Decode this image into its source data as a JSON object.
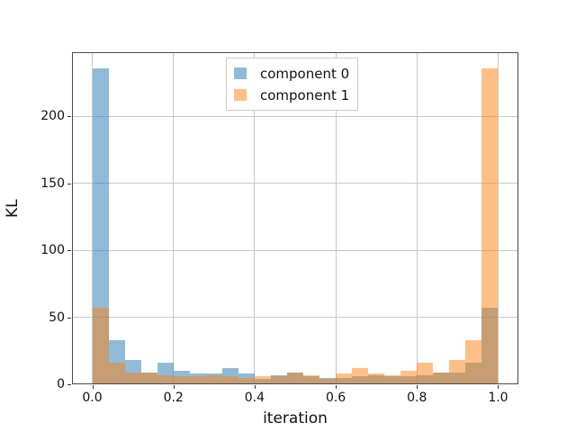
{
  "chart_data": {
    "type": "bar",
    "subtype": "overlaid-histogram",
    "title": "",
    "xlabel": "iteration",
    "ylabel": "KL",
    "xlim": [
      -0.05,
      1.05
    ],
    "ylim": [
      0,
      247.8
    ],
    "grid": true,
    "grid_color": "#c8c8c8",
    "spine_color": "#4a4a4a",
    "background_color": "#ffffff",
    "bin_start": 0.0,
    "bin_width": 0.04,
    "bin_count": 25,
    "xticks": [
      0.0,
      0.2,
      0.4,
      0.6,
      0.8,
      1.0
    ],
    "xtick_labels": [
      "0.0",
      "0.2",
      "0.4",
      "0.6",
      "0.8",
      "1.0"
    ],
    "yticks": [
      0,
      50,
      100,
      150,
      200
    ],
    "ytick_labels": [
      "0",
      "50",
      "100",
      "150",
      "200"
    ],
    "series": [
      {
        "name": "component 0",
        "color": "#1f77b4",
        "alpha": 0.5,
        "values": [
          236,
          33,
          18,
          9,
          16,
          10,
          8,
          8,
          12,
          8,
          4,
          7,
          9,
          6,
          5,
          5,
          6,
          7,
          6,
          6,
          7,
          9,
          9,
          16,
          57
        ]
      },
      {
        "name": "component 1",
        "color": "#ff7f0e",
        "alpha": 0.5,
        "values": [
          57,
          16,
          9,
          9,
          7,
          6,
          6,
          7,
          6,
          5,
          6,
          6,
          9,
          7,
          4,
          8,
          12,
          8,
          7,
          10,
          16,
          9,
          18,
          33,
          236
        ]
      }
    ],
    "legend": {
      "position": "upper center",
      "entries": [
        "component 0",
        "component 1"
      ]
    }
  }
}
